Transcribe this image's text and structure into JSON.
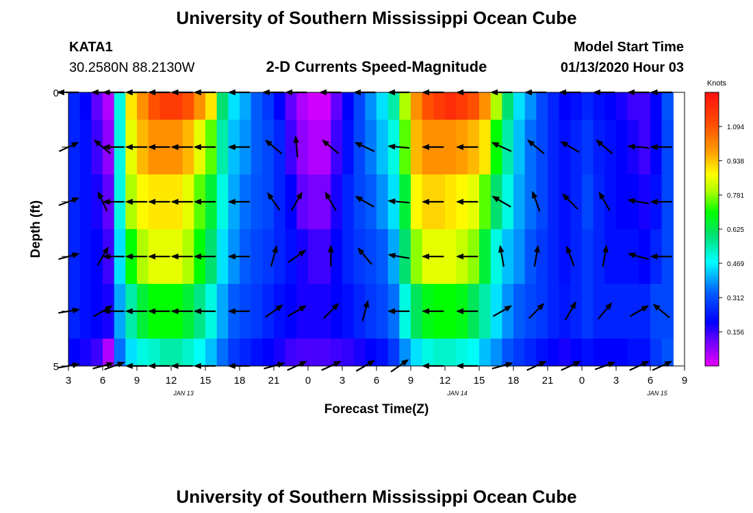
{
  "header": {
    "title": "University of Southern Mississippi Ocean Cube",
    "station": "KATA1",
    "location": "30.2580N 88.2130W",
    "subtitle": "2-D Currents Speed-Magnitude",
    "model_start_label": "Model Start Time",
    "model_start_value": "01/13/2020 Hour 03"
  },
  "footer": {
    "title": "University of Southern Mississippi Ocean Cube"
  },
  "chart_data": {
    "type": "heatmap",
    "xlabel": "Forecast Time(Z)",
    "ylabel": "Depth (ft)",
    "x_tick_labels": [
      "3",
      "6",
      "9",
      "12",
      "15",
      "18",
      "21",
      "0",
      "3",
      "6",
      "9",
      "12",
      "15",
      "18",
      "21",
      "0",
      "3",
      "6",
      "9"
    ],
    "date_labels": [
      "JAN 13",
      "JAN 14",
      "JAN 15"
    ],
    "y_tick_labels": [
      "0",
      "5"
    ],
    "ylim": [
      0,
      5
    ],
    "colorbar": {
      "unit": "Knots",
      "ticks": [
        "1.094",
        "0.938",
        "0.781",
        "0.625",
        "0.469",
        "0.312",
        "0.156"
      ],
      "range": [
        0,
        1.25
      ]
    },
    "row_depths": [
      "0",
      "1",
      "2",
      "3",
      "4",
      "5"
    ],
    "row_bands_ft": [
      [
        0,
        0.5
      ],
      [
        0.5,
        1.5
      ],
      [
        1.5,
        2.5
      ],
      [
        2.5,
        3.5
      ],
      [
        3.5,
        4.5
      ],
      [
        4.5,
        5
      ]
    ],
    "time_points_hours": [
      3,
      4,
      5,
      6,
      7,
      8,
      9,
      10,
      11,
      12,
      13,
      14,
      15,
      16,
      17,
      18,
      19,
      20,
      21,
      22,
      23,
      24,
      25,
      26,
      27,
      28,
      29,
      30,
      31,
      32,
      33,
      34,
      35,
      36,
      37,
      38,
      39,
      40,
      41,
      42,
      43,
      44,
      45,
      46,
      47,
      48,
      49,
      50,
      51,
      52,
      53,
      54,
      55
    ],
    "speed_knots": [
      [
        0.25,
        0.2,
        0.12,
        0.05,
        0.5,
        0.9,
        1.0,
        1.1,
        1.15,
        1.15,
        1.1,
        1.0,
        0.9,
        0.6,
        0.45,
        0.4,
        0.33,
        0.28,
        0.2,
        0.12,
        0.05,
        0.02,
        0.02,
        0.12,
        0.2,
        0.3,
        0.38,
        0.45,
        0.55,
        0.8,
        1.0,
        1.1,
        1.15,
        1.18,
        1.15,
        1.1,
        1.0,
        0.8,
        0.6,
        0.45,
        0.38,
        0.3,
        0.25,
        0.2,
        0.22,
        0.25,
        0.22,
        0.2,
        0.18,
        0.15,
        0.15,
        0.2,
        0.32
      ],
      [
        0.25,
        0.22,
        0.15,
        0.08,
        0.5,
        0.85,
        0.95,
        1.0,
        1.0,
        1.0,
        0.95,
        0.85,
        0.75,
        0.55,
        0.42,
        0.38,
        0.33,
        0.3,
        0.25,
        0.15,
        0.08,
        0.05,
        0.05,
        0.15,
        0.22,
        0.3,
        0.36,
        0.42,
        0.5,
        0.75,
        0.95,
        1.0,
        1.0,
        1.0,
        0.98,
        0.95,
        0.9,
        0.7,
        0.55,
        0.42,
        0.35,
        0.3,
        0.25,
        0.22,
        0.25,
        0.28,
        0.24,
        0.22,
        0.2,
        0.18,
        0.15,
        0.2,
        0.3
      ],
      [
        0.25,
        0.22,
        0.18,
        0.12,
        0.5,
        0.8,
        0.88,
        0.9,
        0.9,
        0.9,
        0.85,
        0.75,
        0.65,
        0.5,
        0.4,
        0.35,
        0.32,
        0.3,
        0.25,
        0.2,
        0.12,
        0.1,
        0.1,
        0.18,
        0.25,
        0.3,
        0.33,
        0.38,
        0.45,
        0.65,
        0.88,
        0.92,
        0.92,
        0.9,
        0.88,
        0.85,
        0.75,
        0.6,
        0.5,
        0.4,
        0.35,
        0.3,
        0.25,
        0.22,
        0.25,
        0.3,
        0.25,
        0.22,
        0.2,
        0.2,
        0.18,
        0.22,
        0.3
      ],
      [
        0.25,
        0.22,
        0.2,
        0.15,
        0.45,
        0.7,
        0.8,
        0.85,
        0.85,
        0.85,
        0.8,
        0.7,
        0.6,
        0.45,
        0.38,
        0.33,
        0.3,
        0.28,
        0.25,
        0.22,
        0.18,
        0.15,
        0.15,
        0.2,
        0.25,
        0.28,
        0.3,
        0.33,
        0.4,
        0.6,
        0.78,
        0.85,
        0.85,
        0.85,
        0.82,
        0.78,
        0.65,
        0.5,
        0.42,
        0.38,
        0.32,
        0.28,
        0.25,
        0.22,
        0.25,
        0.28,
        0.25,
        0.22,
        0.22,
        0.22,
        0.2,
        0.25,
        0.3
      ],
      [
        0.25,
        0.22,
        0.2,
        0.18,
        0.4,
        0.55,
        0.65,
        0.7,
        0.7,
        0.7,
        0.65,
        0.58,
        0.5,
        0.4,
        0.33,
        0.3,
        0.28,
        0.25,
        0.22,
        0.2,
        0.18,
        0.18,
        0.18,
        0.2,
        0.22,
        0.25,
        0.28,
        0.3,
        0.35,
        0.5,
        0.62,
        0.68,
        0.7,
        0.7,
        0.68,
        0.62,
        0.55,
        0.45,
        0.38,
        0.33,
        0.3,
        0.28,
        0.25,
        0.23,
        0.25,
        0.28,
        0.25,
        0.25,
        0.25,
        0.25,
        0.25,
        0.3,
        0.3
      ],
      [
        0.2,
        0.18,
        0.15,
        0.05,
        0.35,
        0.45,
        0.5,
        0.52,
        0.55,
        0.55,
        0.52,
        0.48,
        0.42,
        0.35,
        0.28,
        0.25,
        0.22,
        0.2,
        0.18,
        0.15,
        0.14,
        0.14,
        0.14,
        0.15,
        0.16,
        0.18,
        0.2,
        0.22,
        0.28,
        0.38,
        0.45,
        0.5,
        0.52,
        0.52,
        0.5,
        0.48,
        0.42,
        0.38,
        0.32,
        0.28,
        0.25,
        0.22,
        0.2,
        0.18,
        0.2,
        0.22,
        0.2,
        0.2,
        0.2,
        0.22,
        0.22,
        0.28,
        0.32
      ]
    ],
    "vector_time_hours": [
      3,
      6,
      7,
      9,
      11,
      13,
      15,
      18,
      21,
      23,
      26,
      29,
      32,
      35,
      38,
      41,
      44,
      47,
      50,
      53,
      55
    ],
    "vector_depth_ft": [
      0,
      1,
      2,
      3,
      4,
      5
    ],
    "vector_angle_deg": [
      [
        180,
        180,
        180,
        180,
        180,
        180,
        180,
        180,
        180,
        180,
        180,
        180,
        180,
        180,
        180,
        180,
        180,
        180,
        180,
        180,
        180
      ],
      [
        25,
        140,
        180,
        180,
        180,
        180,
        180,
        180,
        140,
        95,
        140,
        155,
        175,
        180,
        180,
        155,
        140,
        150,
        140,
        175,
        180
      ],
      [
        20,
        115,
        180,
        180,
        180,
        180,
        180,
        180,
        125,
        60,
        120,
        150,
        175,
        180,
        180,
        150,
        110,
        135,
        120,
        170,
        180
      ],
      [
        15,
        60,
        180,
        180,
        180,
        180,
        180,
        180,
        75,
        35,
        90,
        130,
        170,
        180,
        180,
        100,
        80,
        110,
        80,
        165,
        180
      ],
      [
        10,
        30,
        180,
        180,
        180,
        180,
        180,
        180,
        35,
        30,
        45,
        75,
        180,
        180,
        180,
        30,
        45,
        60,
        50,
        30,
        140
      ],
      [
        10,
        15,
        20,
        180,
        180,
        180,
        180,
        180,
        15,
        25,
        25,
        30,
        35,
        180,
        180,
        15,
        25,
        25,
        20,
        25,
        25
      ]
    ]
  }
}
